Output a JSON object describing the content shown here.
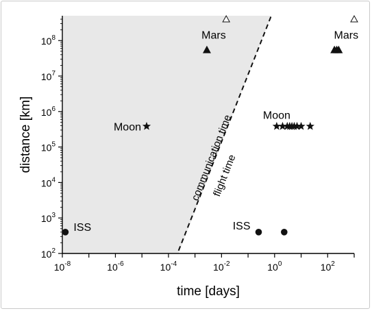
{
  "chart_data": {
    "type": "scatter",
    "xlabel": "time [days]",
    "ylabel": "distance [km]",
    "xscale": "log",
    "yscale": "log",
    "xlim": [
      1e-08,
      1000
    ],
    "ylim": [
      100,
      500000000
    ],
    "x_ticks": [
      {
        "value": 1e-08,
        "base": "10",
        "exp": "-8"
      },
      {
        "value": 1e-06,
        "base": "10",
        "exp": "-6"
      },
      {
        "value": 0.0001,
        "base": "10",
        "exp": "-4"
      },
      {
        "value": 0.01,
        "base": "10",
        "exp": "-2"
      },
      {
        "value": 1,
        "base": "10",
        "exp": "0"
      },
      {
        "value": 100,
        "base": "10",
        "exp": "2"
      }
    ],
    "y_ticks": [
      {
        "value": 100,
        "base": "10",
        "exp": "2"
      },
      {
        "value": 1000,
        "base": "10",
        "exp": "3"
      },
      {
        "value": 10000,
        "base": "10",
        "exp": "4"
      },
      {
        "value": 100000,
        "base": "10",
        "exp": "5"
      },
      {
        "value": 1000000,
        "base": "10",
        "exp": "6"
      },
      {
        "value": 10000000,
        "base": "10",
        "exp": "7"
      },
      {
        "value": 100000000,
        "base": "10",
        "exp": "8"
      }
    ],
    "region": {
      "name": "communication time",
      "fill": "#e8e8e8",
      "boundary": [
        {
          "x": 0.00024,
          "y": 120
        },
        {
          "x": 0.75,
          "y": 500000000
        }
      ]
    },
    "divider_line": [
      {
        "x": 0.00024,
        "y": 120
      },
      {
        "x": 0.75,
        "y": 500000000
      }
    ],
    "region_labels": [
      "communication time",
      "flight time"
    ],
    "communication_points": [
      {
        "label": "ISS",
        "marker": "circle",
        "x": 1.3e-08,
        "y": 400
      },
      {
        "label": "Moon",
        "marker": "star",
        "x": 1.5e-05,
        "y": 384000
      },
      {
        "label": "Mars",
        "marker": "triangle",
        "x": 0.0028,
        "y": 55000000
      },
      {
        "label": "",
        "marker": "triangle-open",
        "x": 0.015,
        "y": 400000000
      }
    ],
    "flight_points": [
      {
        "label": "ISS",
        "marker": "circle",
        "x": 0.25,
        "y": 400
      },
      {
        "label": "",
        "marker": "circle",
        "x": 2.3,
        "y": 400
      },
      {
        "label": "Moon",
        "marker": "star",
        "x": 1.2,
        "y": 384000
      },
      {
        "label": "",
        "marker": "star",
        "x": 2.0,
        "y": 384000
      },
      {
        "label": "",
        "marker": "star",
        "x": 3.0,
        "y": 384000
      },
      {
        "label": "",
        "marker": "star",
        "x": 3.7,
        "y": 384000
      },
      {
        "label": "",
        "marker": "star",
        "x": 4.5,
        "y": 384000
      },
      {
        "label": "",
        "marker": "star",
        "x": 5.5,
        "y": 384000
      },
      {
        "label": "",
        "marker": "star",
        "x": 7.0,
        "y": 384000
      },
      {
        "label": "",
        "marker": "star",
        "x": 10,
        "y": 384000
      },
      {
        "label": "",
        "marker": "star",
        "x": 22,
        "y": 384000
      },
      {
        "label": "",
        "marker": "triangle",
        "x": 180,
        "y": 55000000
      },
      {
        "label": "",
        "marker": "triangle",
        "x": 220,
        "y": 55000000
      },
      {
        "label": "Mars",
        "marker": "triangle",
        "x": 260,
        "y": 55000000
      },
      {
        "label": "",
        "marker": "triangle-open",
        "x": 1000,
        "y": 400000000
      }
    ],
    "grid": false,
    "legend": "none"
  }
}
